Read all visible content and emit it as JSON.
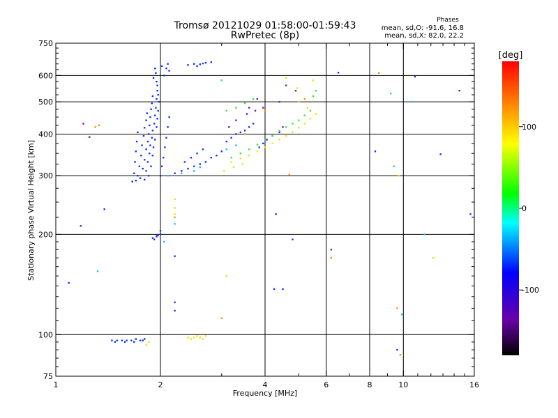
{
  "chart_data": {
    "type": "scatter",
    "title": "Tromsø 20121029 01:58:00-01:59:43",
    "subtitle": "RwPretec (8p)",
    "xlabel": "Frequency [MHz]",
    "ylabel": "Stationary phase Virtual Height [km]",
    "x_scale": "log",
    "y_scale": "log",
    "xlim": [
      1,
      16
    ],
    "ylim": [
      75,
      750
    ],
    "x_ticks": [
      1,
      2,
      4,
      6,
      8,
      10,
      16
    ],
    "y_ticks": [
      75,
      100,
      200,
      300,
      400,
      500,
      600,
      750
    ],
    "grid": true,
    "stats": {
      "heading": "Phases",
      "line_o": "mean, sd,O: -91.6, 16.8",
      "line_x": "mean, sd,X:  82.0, 22.2"
    },
    "colorbar": {
      "label": "[deg]",
      "range": [
        -180,
        180
      ],
      "ticks": [
        -100,
        0,
        100
      ],
      "palette": "rainbow: black, purple, blue, cyan, green, yellow, orange, red"
    },
    "series": [
      {
        "phase": "blue",
        "points": [
          [
            1.8,
            292
          ],
          [
            1.82,
            310
          ],
          [
            1.84,
            330
          ],
          [
            1.86,
            350
          ],
          [
            1.87,
            370
          ],
          [
            1.89,
            390
          ],
          [
            1.9,
            410
          ],
          [
            1.92,
            430
          ],
          [
            1.93,
            455
          ],
          [
            1.94,
            480
          ],
          [
            1.95,
            510
          ],
          [
            1.96,
            540
          ],
          [
            1.95,
            575
          ],
          [
            1.94,
            610
          ],
          [
            1.93,
            630
          ],
          [
            1.85,
            300
          ],
          [
            1.88,
            320
          ],
          [
            1.9,
            345
          ],
          [
            1.91,
            365
          ],
          [
            1.93,
            385
          ],
          [
            1.95,
            420
          ],
          [
            1.96,
            445
          ],
          [
            1.97,
            470
          ],
          [
            1.98,
            500
          ],
          [
            1.97,
            525
          ],
          [
            1.96,
            560
          ],
          [
            1.91,
            590
          ],
          [
            1.75,
            295
          ],
          [
            1.78,
            315
          ],
          [
            1.8,
            335
          ],
          [
            1.82,
            360
          ],
          [
            1.84,
            380
          ],
          [
            1.85,
            400
          ],
          [
            1.86,
            425
          ],
          [
            1.87,
            450
          ],
          [
            1.88,
            475
          ],
          [
            1.89,
            495
          ],
          [
            1.9,
            520
          ],
          [
            1.7,
            290
          ],
          [
            1.72,
            300
          ],
          [
            1.74,
            320
          ],
          [
            1.76,
            345
          ],
          [
            1.77,
            370
          ],
          [
            1.79,
            395
          ],
          [
            1.8,
            418
          ],
          [
            1.82,
            440
          ],
          [
            1.83,
            462
          ],
          [
            1.66,
            288
          ],
          [
            1.68,
            305
          ],
          [
            1.69,
            330
          ],
          [
            1.7,
            355
          ],
          [
            1.71,
            380
          ],
          [
            1.72,
            405
          ],
          [
            2.0,
            300
          ],
          [
            2.02,
            320
          ],
          [
            2.04,
            340
          ],
          [
            2.06,
            365
          ],
          [
            2.08,
            390
          ],
          [
            2.1,
            420
          ],
          [
            2.12,
            450
          ],
          [
            2.05,
            600
          ],
          [
            2.08,
            630
          ],
          [
            2.1,
            650
          ],
          [
            2.02,
            640
          ],
          [
            2.12,
            620
          ],
          [
            2.2,
            305
          ],
          [
            2.3,
            310
          ],
          [
            2.4,
            315
          ],
          [
            2.5,
            320
          ],
          [
            2.6,
            325
          ],
          [
            2.7,
            330
          ],
          [
            2.8,
            340
          ],
          [
            2.9,
            345
          ],
          [
            3.0,
            355
          ],
          [
            2.35,
            330
          ],
          [
            2.45,
            340
          ],
          [
            2.55,
            350
          ],
          [
            2.65,
            360
          ],
          [
            2.4,
            645
          ],
          [
            2.5,
            650
          ],
          [
            2.6,
            648
          ],
          [
            2.7,
            655
          ],
          [
            2.8,
            658
          ],
          [
            2.55,
            640
          ],
          [
            2.65,
            652
          ],
          [
            3.1,
            380
          ],
          [
            3.2,
            390
          ],
          [
            3.3,
            400
          ],
          [
            3.4,
            405
          ],
          [
            3.5,
            410
          ],
          [
            3.6,
            420
          ],
          [
            3.7,
            430
          ],
          [
            3.85,
            365
          ],
          [
            3.95,
            375
          ],
          [
            4.05,
            385
          ],
          [
            4.2,
            395
          ],
          [
            4.4,
            405
          ],
          [
            1.9,
            195
          ],
          [
            1.95,
            197
          ],
          [
            2.0,
            200
          ],
          [
            1.92,
            193
          ],
          [
            1.97,
            199
          ],
          [
            1.45,
            96
          ],
          [
            1.5,
            96
          ],
          [
            1.55,
            96
          ],
          [
            1.6,
            96
          ],
          [
            1.65,
            96
          ],
          [
            1.7,
            97
          ],
          [
            1.75,
            96
          ],
          [
            1.8,
            97
          ],
          [
            1.48,
            95
          ],
          [
            1.58,
            95
          ],
          [
            1.68,
            95
          ],
          [
            1.78,
            96
          ],
          [
            4.3,
            230
          ],
          [
            4.5,
            137
          ],
          [
            4.8,
            193
          ],
          [
            4.25,
            137
          ],
          [
            6.5,
            612
          ],
          [
            8.3,
            355
          ],
          [
            10.8,
            595
          ],
          [
            12.8,
            348
          ],
          [
            14.5,
            540
          ],
          [
            15.6,
            230
          ],
          [
            1.38,
            238
          ],
          [
            1.09,
            143
          ],
          [
            2.2,
            172
          ],
          [
            9.6,
            90
          ]
        ]
      },
      {
        "phase": "purple",
        "points": [
          [
            3.15,
            420
          ],
          [
            3.3,
            440
          ],
          [
            3.55,
            460
          ],
          [
            3.75,
            470
          ],
          [
            3.95,
            480
          ],
          [
            4.4,
            500
          ],
          [
            4.6,
            560
          ],
          [
            3.8,
            510
          ],
          [
            3.6,
            480
          ],
          [
            1.18,
            212
          ],
          [
            1.25,
            392
          ],
          [
            1.2,
            430
          ],
          [
            2.2,
            118
          ],
          [
            2.2,
            125
          ],
          [
            6.2,
            180
          ],
          [
            4.5,
            420
          ],
          [
            4.9,
            540
          ],
          [
            2.0,
            205
          ],
          [
            1.95,
            198
          ]
        ]
      },
      {
        "phase": "cyan",
        "points": [
          [
            2.1,
            300
          ],
          [
            2.3,
            305
          ],
          [
            2.5,
            310
          ],
          [
            2.6,
            318
          ],
          [
            2.2,
            215
          ],
          [
            3.1,
            360
          ],
          [
            3.3,
            370
          ],
          [
            1.32,
            155
          ],
          [
            9.9,
            115
          ],
          [
            10.5,
            500
          ],
          [
            11.5,
            200
          ],
          [
            2.05,
            190
          ]
        ]
      },
      {
        "phase": "green",
        "points": [
          [
            3.2,
            340
          ],
          [
            3.4,
            350
          ],
          [
            3.6,
            360
          ],
          [
            3.8,
            372
          ],
          [
            4.0,
            385
          ],
          [
            4.2,
            395
          ],
          [
            4.4,
            410
          ],
          [
            4.6,
            420
          ],
          [
            4.8,
            430
          ],
          [
            5.0,
            440
          ],
          [
            5.2,
            455
          ],
          [
            5.4,
            470
          ],
          [
            3.1,
            470
          ],
          [
            3.3,
            480
          ],
          [
            3.5,
            495
          ],
          [
            3.7,
            510
          ],
          [
            5.5,
            520
          ],
          [
            5.6,
            540
          ],
          [
            9.2,
            530
          ],
          [
            9.4,
            320
          ],
          [
            3.0,
            580
          ]
        ]
      },
      {
        "phase": "yellow",
        "points": [
          [
            3.2,
            330
          ],
          [
            3.4,
            338
          ],
          [
            3.6,
            345
          ],
          [
            3.8,
            355
          ],
          [
            4.0,
            365
          ],
          [
            4.2,
            375
          ],
          [
            4.4,
            385
          ],
          [
            4.6,
            395
          ],
          [
            4.8,
            405
          ],
          [
            5.0,
            418
          ],
          [
            5.2,
            430
          ],
          [
            5.4,
            445
          ],
          [
            5.6,
            460
          ],
          [
            3.05,
            310
          ],
          [
            3.25,
            318
          ],
          [
            3.45,
            325
          ],
          [
            2.4,
            98
          ],
          [
            2.5,
            98
          ],
          [
            2.6,
            98
          ],
          [
            2.7,
            99
          ],
          [
            2.45,
            97
          ],
          [
            2.55,
            99
          ],
          [
            2.65,
            97
          ],
          [
            1.85,
            95
          ],
          [
            1.82,
            93
          ],
          [
            3.1,
            150
          ],
          [
            4.6,
            590
          ],
          [
            5.0,
            500
          ],
          [
            5.5,
            580
          ],
          [
            9.7,
            300
          ],
          [
            12.2,
            170
          ],
          [
            2.2,
            255
          ],
          [
            2.2,
            240
          ],
          [
            2.2,
            230
          ],
          [
            5.3,
            480
          ],
          [
            4.95,
            550
          ]
        ]
      },
      {
        "phase": "orange",
        "points": [
          [
            3.0,
            112
          ],
          [
            2.2,
            225
          ],
          [
            9.6,
            120
          ],
          [
            9.8,
            87
          ],
          [
            8.5,
            610
          ],
          [
            6.2,
            170
          ],
          [
            1.3,
            420
          ],
          [
            1.33,
            425
          ],
          [
            4.7,
            302
          ],
          [
            3.5,
            400
          ],
          [
            4.0,
            470
          ],
          [
            5.2,
            510
          ]
        ]
      }
    ]
  }
}
